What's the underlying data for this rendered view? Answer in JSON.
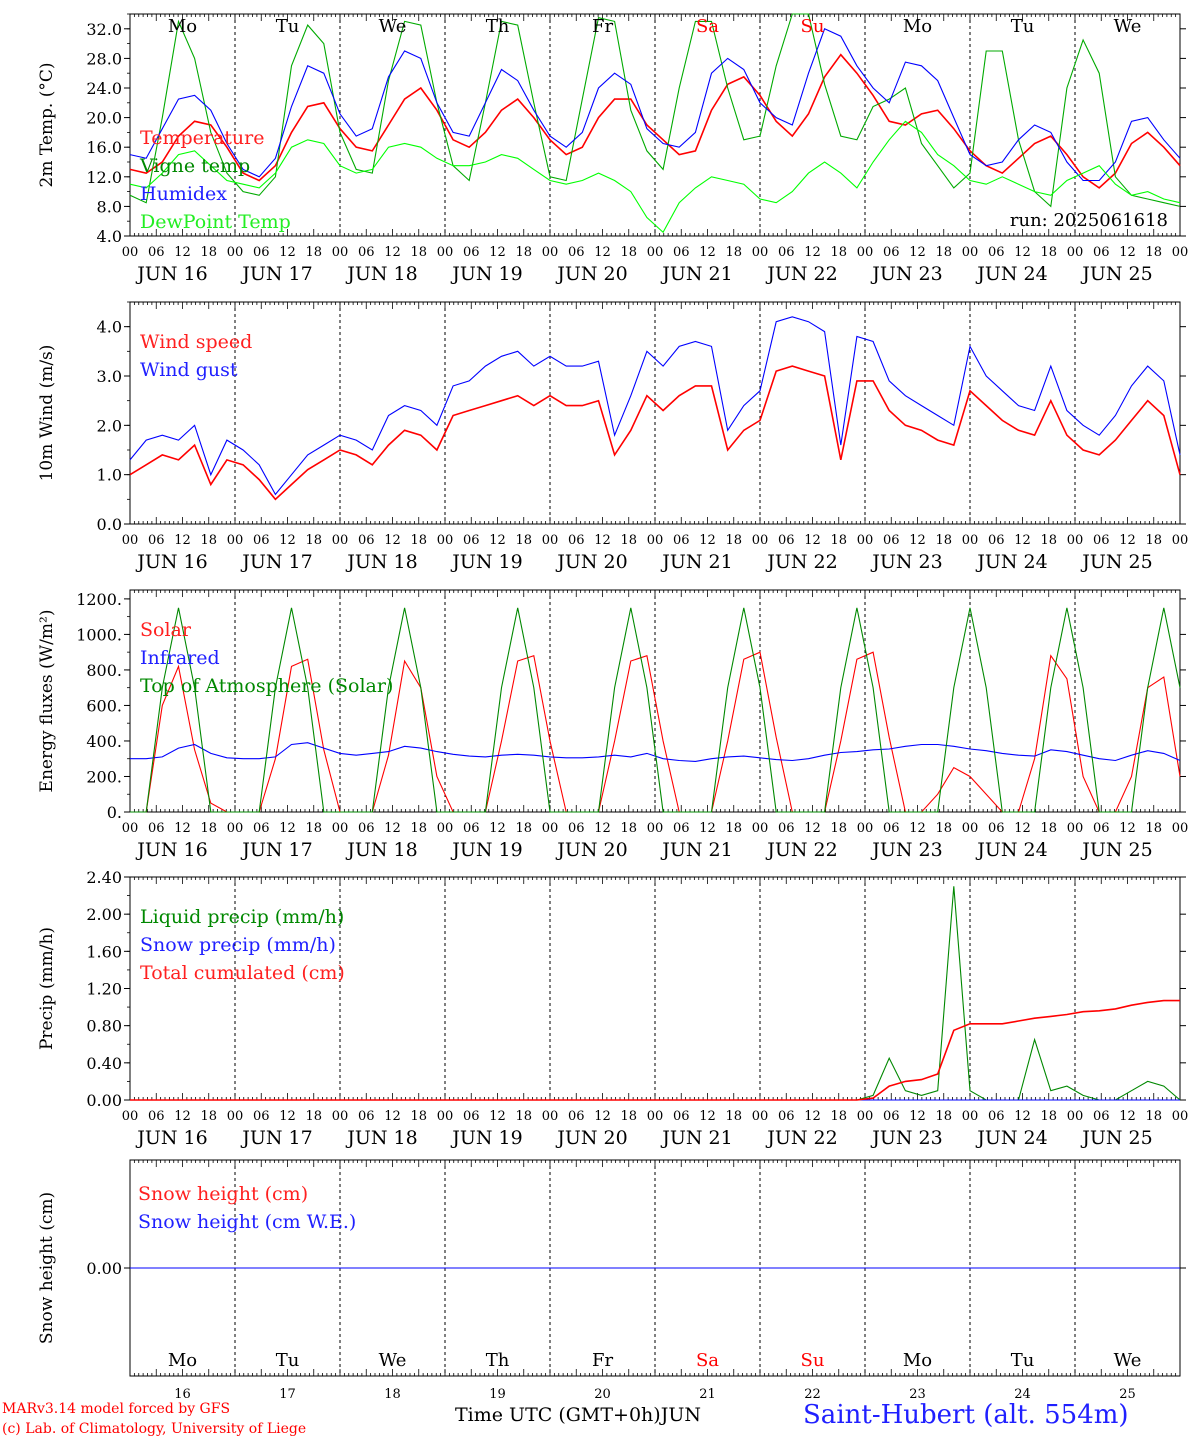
{
  "footer": {
    "model": "MARv3.14 model forced by GFS",
    "lab": "(c) Lab. of Climatology, University of Liege",
    "time_axis": "Time UTC (GMT+0h)",
    "month": "JUN",
    "station": "Saint-Hubert (alt. 554m)"
  },
  "days": [
    "16",
    "17",
    "18",
    "19",
    "20",
    "21",
    "22",
    "23",
    "24",
    "25"
  ],
  "day_labels": [
    "JUN 16",
    "JUN 17",
    "JUN 18",
    "JUN 19",
    "JUN 20",
    "JUN 21",
    "JUN 22",
    "JUN 23",
    "JUN 24",
    "JUN 25"
  ],
  "weekdays": [
    "Mo",
    "Tu",
    "We",
    "Th",
    "Fr",
    "Sa",
    "Su",
    "Mo",
    "Tu",
    "We"
  ],
  "weekend_color": "#ff0000",
  "hour_ticks": [
    "00",
    "06",
    "12",
    "18"
  ],
  "hour_final": "00",
  "chart_data": [
    {
      "type": "line",
      "ylabel": "2m Temp. (°C)",
      "ylim": [
        4,
        34
      ],
      "yticks": [
        "4.0",
        "8.0",
        "12.0",
        "16.0",
        "20.0",
        "24.0",
        "28.0",
        "32.0"
      ],
      "annotation": "run: 2025061618",
      "series": [
        {
          "name": "Temperature",
          "color": "#ff0000",
          "values": [
            13.0,
            12.5,
            14.0,
            17.5,
            19.5,
            19.0,
            16.0,
            12.5,
            11.5,
            13.5,
            18.0,
            21.5,
            22.0,
            18.5,
            16.0,
            15.5,
            19.0,
            22.5,
            24.0,
            21.0,
            17.0,
            16.0,
            18.0,
            21.0,
            22.5,
            20.0,
            17.0,
            15.0,
            16.0,
            20.0,
            22.5,
            22.5,
            19.0,
            17.0,
            15.0,
            15.5,
            21.0,
            24.5,
            25.5,
            23.0,
            19.5,
            17.5,
            20.5,
            25.5,
            28.5,
            26.0,
            23.0,
            19.5,
            19.0,
            20.5,
            21.0,
            18.5,
            15.5,
            13.5,
            12.5,
            14.5,
            16.5,
            17.5,
            15.0,
            12.0,
            10.5,
            12.5,
            16.5,
            18.0,
            16.0,
            13.5
          ]
        },
        {
          "name": "Vigne temp",
          "color": "#00aa00",
          "values": [
            9.5,
            8.5,
            20.0,
            33.0,
            28.0,
            18.0,
            12.5,
            10.0,
            9.5,
            12.0,
            27.0,
            32.5,
            30.0,
            18.0,
            13.0,
            12.5,
            25.0,
            33.0,
            32.5,
            22.0,
            13.5,
            11.5,
            22.0,
            33.0,
            32.5,
            22.0,
            12.0,
            11.5,
            22.5,
            33.5,
            33.0,
            21.0,
            15.5,
            13.0,
            24.0,
            33.0,
            33.0,
            24.0,
            17.0,
            17.5,
            27.0,
            34.0,
            34.0,
            24.5,
            17.5,
            17.0,
            21.5,
            22.5,
            24.0,
            16.5,
            13.5,
            10.5,
            12.5,
            29.0,
            29.0,
            17.0,
            10.0,
            8.0,
            24.0,
            30.5,
            26.0,
            12.0,
            9.5,
            9.0,
            8.5,
            8.0
          ]
        },
        {
          "name": "Humidex",
          "color": "#0000ff",
          "values": [
            15.0,
            14.5,
            18.5,
            22.5,
            23.0,
            21.0,
            16.5,
            13.0,
            12.0,
            14.5,
            21.5,
            27.0,
            26.0,
            20.5,
            17.5,
            18.5,
            25.5,
            29.0,
            28.0,
            22.0,
            18.0,
            17.5,
            22.0,
            26.5,
            25.0,
            21.0,
            17.5,
            16.0,
            18.0,
            24.0,
            26.0,
            24.5,
            18.5,
            16.5,
            16.0,
            18.0,
            26.0,
            28.0,
            26.5,
            22.0,
            20.0,
            19.0,
            26.0,
            32.0,
            31.0,
            27.0,
            24.0,
            22.0,
            27.5,
            27.0,
            25.0,
            20.0,
            15.0,
            13.5,
            14.0,
            17.0,
            19.0,
            18.0,
            14.0,
            11.5,
            11.5,
            14.0,
            19.5,
            20.0,
            17.0,
            14.5
          ]
        },
        {
          "name": "DewPoint Temp",
          "color": "#00ff00",
          "values": [
            11.0,
            10.5,
            12.5,
            15.0,
            15.5,
            13.5,
            11.5,
            11.0,
            10.5,
            12.5,
            16.0,
            17.0,
            16.5,
            13.5,
            12.5,
            13.0,
            16.0,
            16.5,
            16.0,
            14.5,
            13.5,
            13.5,
            14.0,
            15.0,
            14.5,
            13.0,
            11.5,
            11.0,
            11.5,
            12.5,
            11.5,
            10.0,
            6.5,
            4.5,
            8.5,
            10.5,
            12.0,
            11.5,
            11.0,
            9.0,
            8.5,
            10.0,
            12.5,
            14.0,
            12.5,
            10.5,
            14.0,
            17.0,
            19.5,
            18.0,
            15.0,
            13.5,
            11.5,
            11.0,
            12.0,
            11.0,
            10.0,
            9.5,
            11.5,
            12.5,
            13.5,
            11.0,
            9.5,
            10.0,
            9.0,
            8.5
          ]
        }
      ]
    },
    {
      "type": "line",
      "ylabel": "10m Wind (m/s)",
      "ylim": [
        0,
        4.5
      ],
      "yticks": [
        "0.0",
        "1.0",
        "2.0",
        "3.0",
        "4.0"
      ],
      "series": [
        {
          "name": "Wind speed",
          "color": "#ff0000",
          "values": [
            1.0,
            1.2,
            1.4,
            1.3,
            1.6,
            0.8,
            1.3,
            1.2,
            0.9,
            0.5,
            0.8,
            1.1,
            1.3,
            1.5,
            1.4,
            1.2,
            1.6,
            1.9,
            1.8,
            1.5,
            2.2,
            2.3,
            2.4,
            2.5,
            2.6,
            2.4,
            2.6,
            2.4,
            2.4,
            2.5,
            1.4,
            1.9,
            2.6,
            2.3,
            2.6,
            2.8,
            2.8,
            1.5,
            1.9,
            2.1,
            3.1,
            3.2,
            3.1,
            3.0,
            1.3,
            2.9,
            2.9,
            2.3,
            2.0,
            1.9,
            1.7,
            1.6,
            2.7,
            2.4,
            2.1,
            1.9,
            1.8,
            2.5,
            1.8,
            1.5,
            1.4,
            1.7,
            2.1,
            2.5,
            2.2,
            1.0
          ]
        },
        {
          "name": "Wind gust",
          "color": "#0000ff",
          "values": [
            1.3,
            1.7,
            1.8,
            1.7,
            2.0,
            1.0,
            1.7,
            1.5,
            1.2,
            0.6,
            1.0,
            1.4,
            1.6,
            1.8,
            1.7,
            1.5,
            2.2,
            2.4,
            2.3,
            2.0,
            2.8,
            2.9,
            3.2,
            3.4,
            3.5,
            3.2,
            3.4,
            3.2,
            3.2,
            3.3,
            1.8,
            2.6,
            3.5,
            3.2,
            3.6,
            3.7,
            3.6,
            1.9,
            2.4,
            2.7,
            4.1,
            4.2,
            4.1,
            3.9,
            1.6,
            3.8,
            3.7,
            2.9,
            2.6,
            2.4,
            2.2,
            2.0,
            3.6,
            3.0,
            2.7,
            2.4,
            2.3,
            3.2,
            2.3,
            2.0,
            1.8,
            2.2,
            2.8,
            3.2,
            2.9,
            1.4
          ]
        }
      ]
    },
    {
      "type": "line",
      "ylabel": "Energy fluxes (W/m²)",
      "ylim": [
        0,
        1250
      ],
      "yticks": [
        "0.",
        "200.",
        "400.",
        "600.",
        "800.",
        "1000.",
        "1200."
      ],
      "series": [
        {
          "name": "Solar",
          "color": "#ff0000",
          "values": [
            0,
            0,
            600,
            820,
            350,
            50,
            0,
            0,
            0,
            300,
            820,
            860,
            350,
            0,
            0,
            0,
            320,
            850,
            700,
            200,
            0,
            0,
            0,
            400,
            850,
            880,
            400,
            0,
            0,
            0,
            400,
            850,
            880,
            400,
            0,
            0,
            0,
            400,
            860,
            900,
            420,
            0,
            0,
            0,
            400,
            860,
            900,
            420,
            0,
            0,
            100,
            250,
            200,
            100,
            0,
            0,
            300,
            880,
            750,
            200,
            0,
            0,
            200,
            700,
            760,
            200
          ]
        },
        {
          "name": "Infrared",
          "color": "#0000ff",
          "values": [
            300,
            300,
            310,
            360,
            380,
            330,
            305,
            300,
            300,
            310,
            380,
            390,
            360,
            330,
            320,
            330,
            340,
            370,
            360,
            340,
            325,
            315,
            310,
            320,
            325,
            320,
            310,
            305,
            305,
            310,
            320,
            310,
            330,
            300,
            290,
            285,
            300,
            310,
            315,
            305,
            295,
            290,
            300,
            320,
            335,
            340,
            350,
            355,
            370,
            380,
            380,
            370,
            355,
            345,
            330,
            320,
            315,
            350,
            340,
            320,
            300,
            290,
            320,
            345,
            330,
            290
          ]
        },
        {
          "name": "Top of Atmosphere (Solar)",
          "color": "#008800",
          "values": [
            0,
            0,
            700,
            1150,
            700,
            0,
            0,
            0,
            0,
            700,
            1150,
            700,
            0,
            0,
            0,
            0,
            700,
            1150,
            700,
            0,
            0,
            0,
            0,
            700,
            1150,
            700,
            0,
            0,
            0,
            0,
            700,
            1150,
            700,
            0,
            0,
            0,
            0,
            700,
            1150,
            700,
            0,
            0,
            0,
            0,
            700,
            1150,
            700,
            0,
            0,
            0,
            0,
            700,
            1150,
            700,
            0,
            0,
            0,
            700,
            1150,
            700,
            0,
            0,
            0,
            700,
            1150,
            700
          ]
        }
      ]
    },
    {
      "type": "line",
      "ylabel": "Precip (mm/h)",
      "ylim": [
        0,
        2.4
      ],
      "yticks": [
        "0.00",
        "0.40",
        "0.80",
        "1.20",
        "1.60",
        "2.00",
        "2.40"
      ],
      "series": [
        {
          "name": "Liquid precip (mm/h)",
          "color": "#008800",
          "values": [
            0,
            0,
            0,
            0,
            0,
            0,
            0,
            0,
            0,
            0,
            0,
            0,
            0,
            0,
            0,
            0,
            0,
            0,
            0,
            0,
            0,
            0,
            0,
            0,
            0,
            0,
            0,
            0,
            0,
            0,
            0,
            0,
            0,
            0,
            0,
            0,
            0,
            0,
            0,
            0,
            0,
            0,
            0,
            0,
            0,
            0,
            0.05,
            0.45,
            0.1,
            0.05,
            0.1,
            2.3,
            0.1,
            0,
            0,
            0,
            0.65,
            0.1,
            0.15,
            0.05,
            0,
            0,
            0.1,
            0.2,
            0.15,
            0
          ]
        },
        {
          "name": "Snow precip (mm/h)",
          "color": "#0000ff",
          "values": [
            0,
            0,
            0,
            0,
            0,
            0,
            0,
            0,
            0,
            0,
            0,
            0,
            0,
            0,
            0,
            0,
            0,
            0,
            0,
            0,
            0,
            0,
            0,
            0,
            0,
            0,
            0,
            0,
            0,
            0,
            0,
            0,
            0,
            0,
            0,
            0,
            0,
            0,
            0,
            0,
            0,
            0,
            0,
            0,
            0,
            0,
            0,
            0,
            0,
            0,
            0,
            0,
            0,
            0,
            0,
            0,
            0,
            0,
            0,
            0,
            0,
            0,
            0,
            0,
            0,
            0
          ]
        },
        {
          "name": "Total cumulated (cm)",
          "color": "#ff0000",
          "values": [
            0,
            0,
            0,
            0,
            0,
            0,
            0,
            0,
            0,
            0,
            0,
            0,
            0,
            0,
            0,
            0,
            0,
            0,
            0,
            0,
            0,
            0,
            0,
            0,
            0,
            0,
            0,
            0,
            0,
            0,
            0,
            0,
            0,
            0,
            0,
            0,
            0,
            0,
            0,
            0,
            0,
            0,
            0,
            0,
            0,
            0,
            0.02,
            0.15,
            0.2,
            0.22,
            0.28,
            0.75,
            0.82,
            0.82,
            0.82,
            0.85,
            0.88,
            0.9,
            0.92,
            0.95,
            0.96,
            0.98,
            1.02,
            1.05,
            1.07,
            1.07
          ]
        }
      ]
    },
    {
      "type": "line",
      "ylabel": "Snow height (cm)",
      "yticks": [
        "0.00"
      ],
      "series": [
        {
          "name": "Snow height (cm)",
          "color": "#ff0000",
          "values": [
            0,
            0
          ]
        },
        {
          "name": "Snow height (cm W.E.)",
          "color": "#0000ff",
          "values": [
            0,
            0
          ]
        }
      ]
    }
  ]
}
